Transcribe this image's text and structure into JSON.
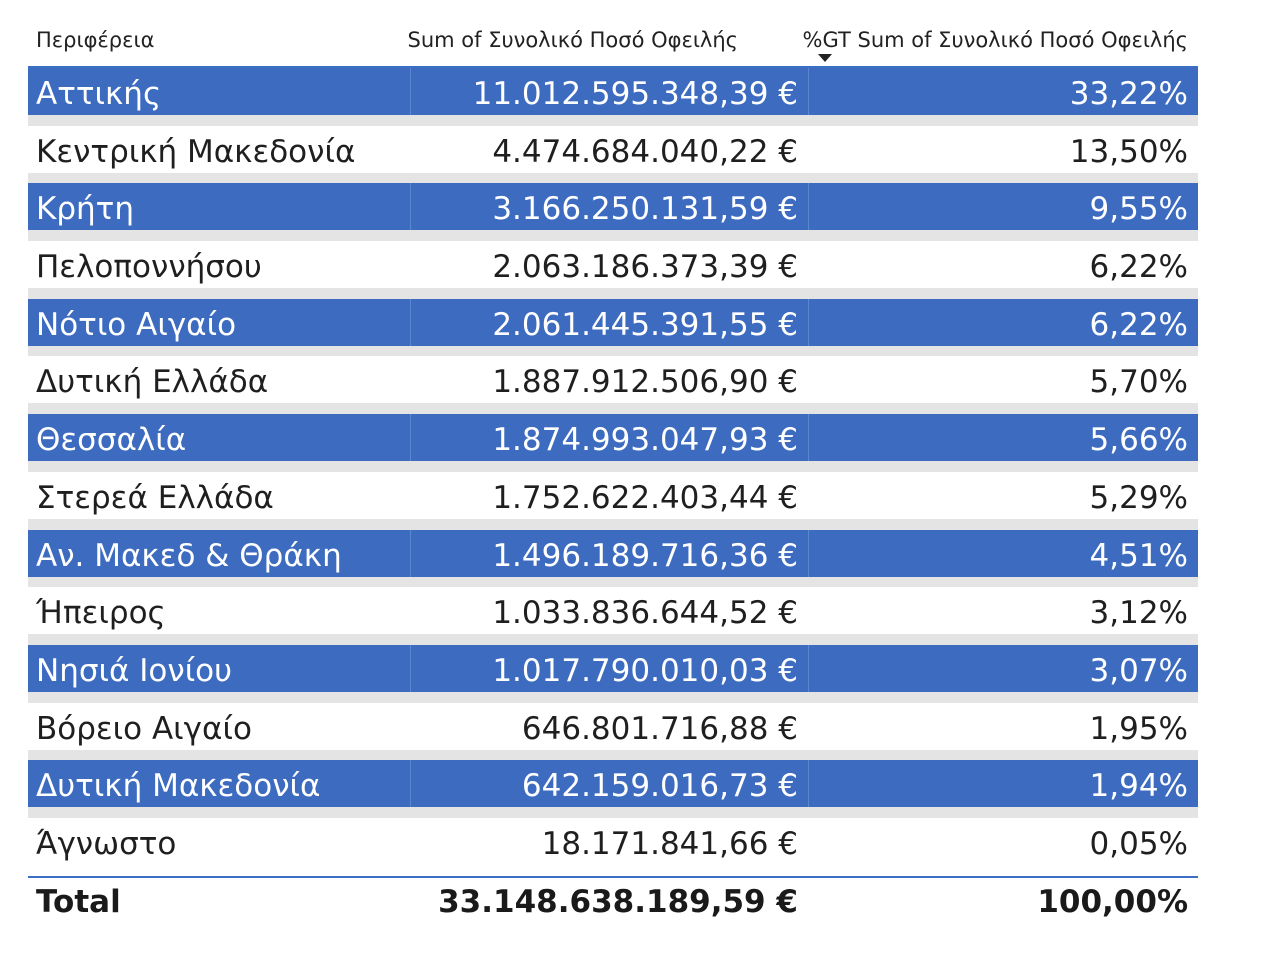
{
  "header": {
    "region": "Περιφέρεια",
    "sum": "Sum of Συνολικό Ποσό Οφειλής",
    "pct": "%GT Sum of Συνολικό Ποσό Οφειλής"
  },
  "colors": {
    "highlight": "#3c6bc0",
    "gap": "#e4e4e4",
    "accent_line": "#3a6fc4"
  },
  "rows": [
    {
      "region": "Αττικής",
      "sum": "11.012.595.348,39 €",
      "pct": "33,22%",
      "highlighted": true
    },
    {
      "region": "Κεντρική Μακεδονία",
      "sum": "4.474.684.040,22 €",
      "pct": "13,50%",
      "highlighted": false
    },
    {
      "region": "Κρήτη",
      "sum": "3.166.250.131,59 €",
      "pct": "9,55%",
      "highlighted": true
    },
    {
      "region": "Πελοποννήσου",
      "sum": "2.063.186.373,39 €",
      "pct": "6,22%",
      "highlighted": false
    },
    {
      "region": "Νότιο Αιγαίο",
      "sum": "2.061.445.391,55 €",
      "pct": "6,22%",
      "highlighted": true
    },
    {
      "region": "Δυτική Ελλάδα",
      "sum": "1.887.912.506,90 €",
      "pct": "5,70%",
      "highlighted": false
    },
    {
      "region": "Θεσσαλία",
      "sum": "1.874.993.047,93 €",
      "pct": "5,66%",
      "highlighted": true
    },
    {
      "region": "Στερεά Ελλάδα",
      "sum": "1.752.622.403,44 €",
      "pct": "5,29%",
      "highlighted": false
    },
    {
      "region": "Αν. Μακεδ & Θράκη",
      "sum": "1.496.189.716,36 €",
      "pct": "4,51%",
      "highlighted": true
    },
    {
      "region": "Ήπειρος",
      "sum": "1.033.836.644,52 €",
      "pct": "3,12%",
      "highlighted": false
    },
    {
      "region": "Νησιά Ιονίου",
      "sum": "1.017.790.010,03 €",
      "pct": "3,07%",
      "highlighted": true
    },
    {
      "region": "Βόρειο Αιγαίο",
      "sum": "646.801.716,88 €",
      "pct": "1,95%",
      "highlighted": false
    },
    {
      "region": "Δυτική Μακεδονία",
      "sum": "642.159.016,73 €",
      "pct": "1,94%",
      "highlighted": true
    },
    {
      "region": "Άγνωστο",
      "sum": "18.171.841,66 €",
      "pct": "0,05%",
      "highlighted": false
    }
  ],
  "total": {
    "label": "Total",
    "sum": "33.148.638.189,59 €",
    "pct": "100,00%"
  }
}
